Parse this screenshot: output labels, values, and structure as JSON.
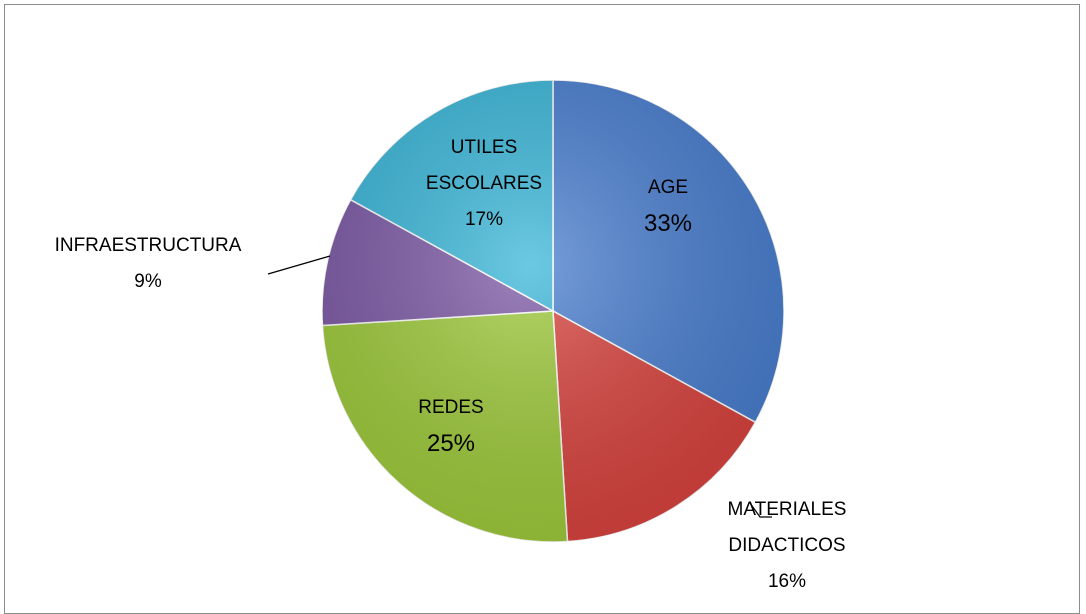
{
  "chart_data": {
    "type": "pie",
    "categories": [
      "AGE",
      "MATERIALES DIDACTICOS",
      "REDES",
      "INFRAESTRUCTURA",
      "UTILES ESCOLARES"
    ],
    "values": [
      33,
      16,
      25,
      9,
      17
    ],
    "value_labels": [
      "33%",
      "16%",
      "25%",
      "9%",
      "17%"
    ],
    "colors": [
      "#4a7fd0",
      "#d9443f",
      "#9fcb3c",
      "#7d5aa6",
      "#3bb7d9"
    ]
  }
}
